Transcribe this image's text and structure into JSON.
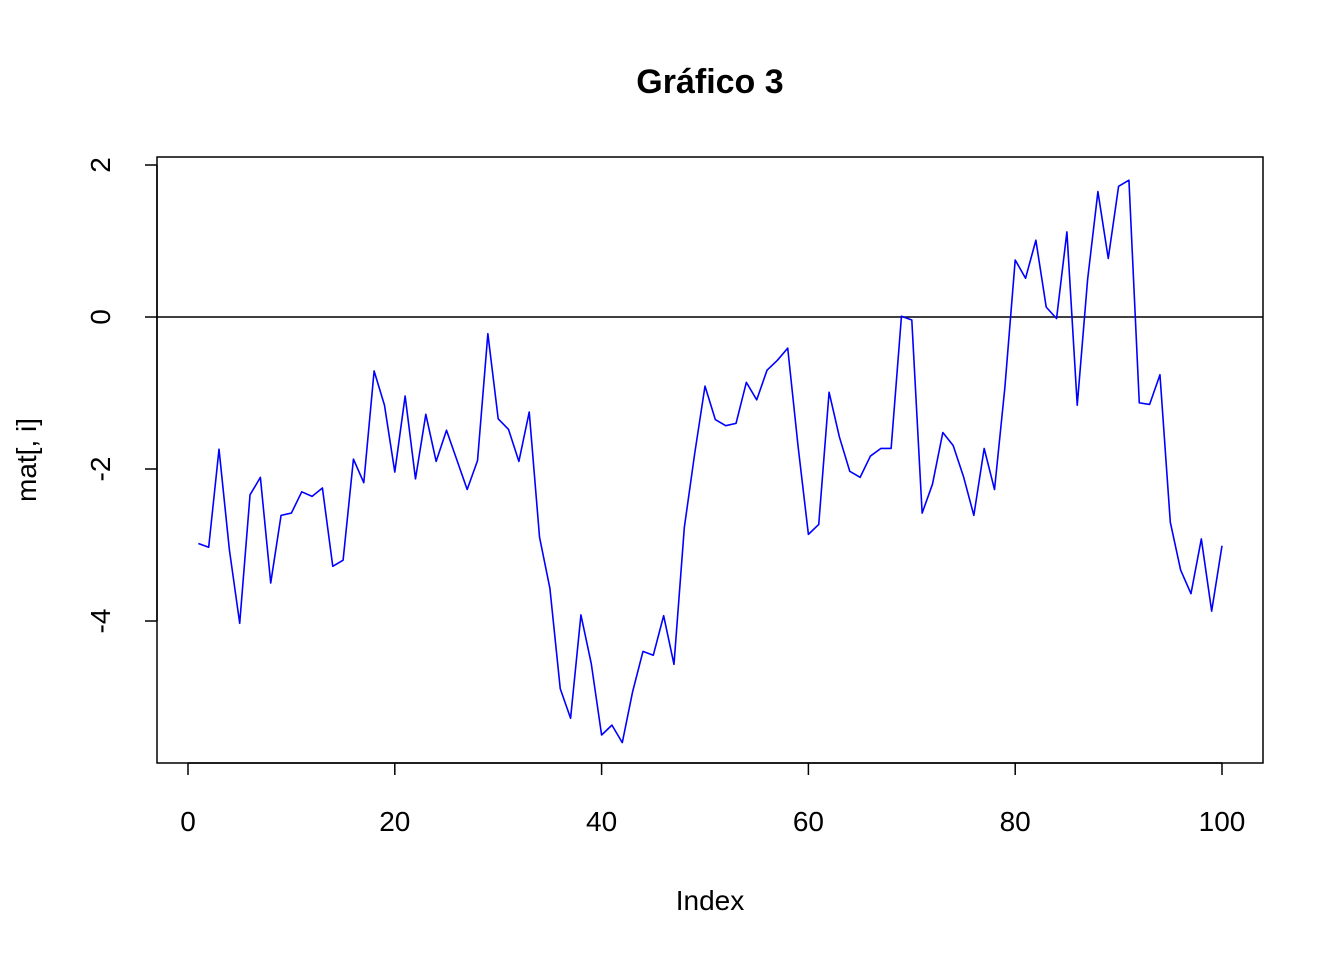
{
  "chart_data": {
    "type": "line",
    "title": "Gráfico 3",
    "xlabel": "Index",
    "ylabel": "mat[, i]",
    "xlim": [
      0,
      100
    ],
    "ylim": [
      -5.6,
      1.9
    ],
    "x_ticks": [
      0,
      20,
      40,
      60,
      80,
      100
    ],
    "y_ticks": [
      -4,
      -2,
      0,
      2
    ],
    "hline": 0,
    "hline_color": "#000000",
    "series": [
      {
        "color": "#0000ff",
        "x": [
          1,
          2,
          3,
          4,
          5,
          6,
          7,
          8,
          9,
          10,
          11,
          12,
          13,
          14,
          15,
          16,
          17,
          18,
          19,
          20,
          21,
          22,
          23,
          24,
          25,
          26,
          27,
          28,
          29,
          30,
          31,
          32,
          33,
          34,
          35,
          36,
          37,
          38,
          39,
          40,
          41,
          42,
          43,
          44,
          45,
          46,
          47,
          48,
          49,
          50,
          51,
          52,
          53,
          54,
          55,
          56,
          57,
          58,
          59,
          60,
          61,
          62,
          63,
          64,
          65,
          66,
          67,
          68,
          69,
          70,
          71,
          72,
          73,
          74,
          75,
          76,
          77,
          78,
          79,
          80,
          81,
          82,
          83,
          84,
          85,
          86,
          87,
          88,
          89,
          90,
          91,
          92,
          93,
          94,
          95,
          96,
          97,
          98,
          99,
          100
        ],
        "values": [
          -2.98,
          -3.03,
          -1.74,
          -3.06,
          -4.03,
          -2.34,
          -2.11,
          -3.5,
          -2.61,
          -2.58,
          -2.3,
          -2.36,
          -2.25,
          -3.28,
          -3.2,
          -1.87,
          -2.18,
          -0.71,
          -1.16,
          -2.04,
          -1.04,
          -2.13,
          -1.28,
          -1.9,
          -1.49,
          -1.88,
          -2.27,
          -1.89,
          -0.22,
          -1.34,
          -1.48,
          -1.9,
          -1.25,
          -2.9,
          -3.57,
          -4.89,
          -5.28,
          -3.92,
          -4.56,
          -5.5,
          -5.37,
          -5.6,
          -4.93,
          -4.4,
          -4.45,
          -3.93,
          -4.57,
          -2.77,
          -1.8,
          -0.91,
          -1.35,
          -1.43,
          -1.4,
          -0.86,
          -1.09,
          -0.7,
          -0.57,
          -0.41,
          -1.7,
          -2.86,
          -2.73,
          -0.99,
          -1.58,
          -2.03,
          -2.11,
          -1.83,
          -1.73,
          -1.73,
          0.01,
          -0.04,
          -2.58,
          -2.2,
          -1.52,
          -1.69,
          -2.1,
          -2.61,
          -1.73,
          -2.27,
          -0.93,
          0.75,
          0.51,
          1.01,
          0.13,
          -0.02,
          1.12,
          -1.16,
          0.49,
          1.65,
          0.77,
          1.72,
          1.8,
          -1.13,
          -1.15,
          -0.76,
          -2.7,
          -3.33,
          -3.64,
          -2.92,
          -3.87,
          -3.01
        ]
      }
    ]
  }
}
